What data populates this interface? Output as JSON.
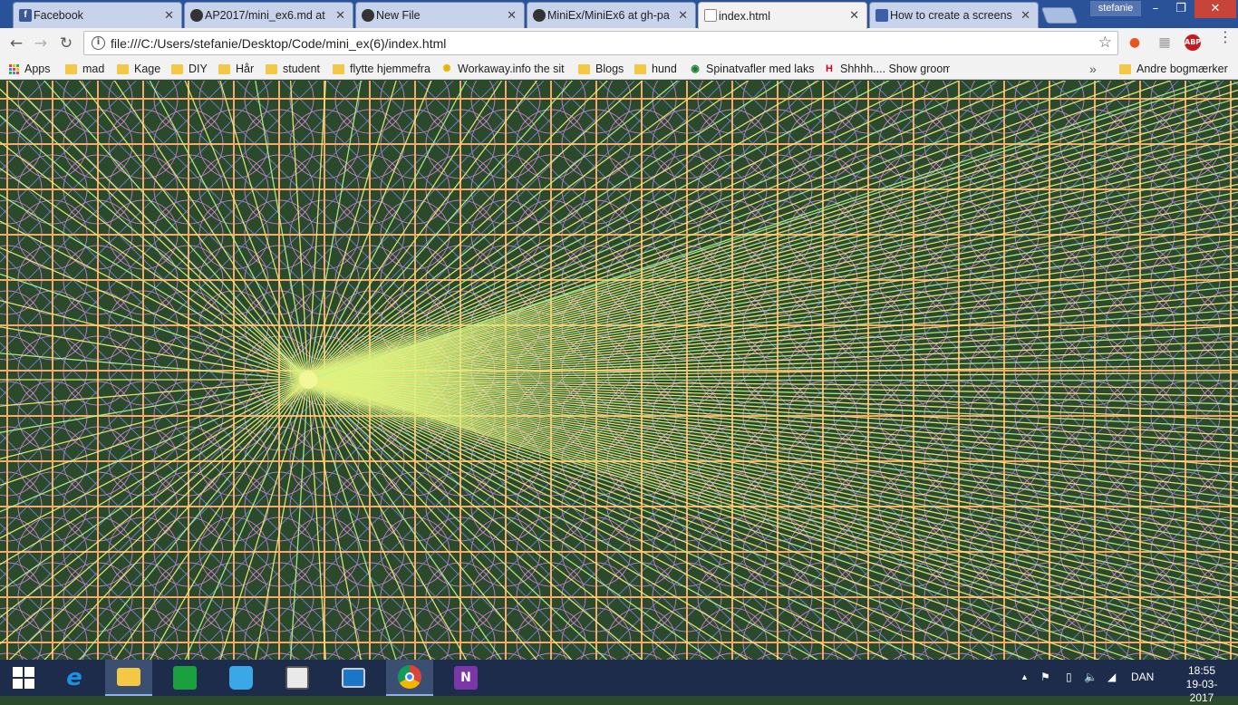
{
  "browser": {
    "tabs": [
      {
        "label": "Facebook",
        "icon": "facebook-icon",
        "active": false
      },
      {
        "label": "AP2017/mini_ex6.md at",
        "icon": "github-icon",
        "active": false
      },
      {
        "label": "New File",
        "icon": "github-icon",
        "active": false
      },
      {
        "label": "MiniEx/MiniEx6 at gh-pa",
        "icon": "github-icon",
        "active": false
      },
      {
        "label": "index.html",
        "icon": "document-icon",
        "active": true
      },
      {
        "label": "How to create a screens",
        "icon": "site-icon",
        "active": false
      }
    ],
    "close_glyph": "✕",
    "profile_name": "stefanie",
    "window_controls": {
      "minimize": "–",
      "maximize": "❐",
      "close": "✕"
    },
    "url": "file:///C:/Users/stefanie/Desktop/Code/mini_ex(6)/index.html",
    "nav": {
      "back": "←",
      "forward": "→",
      "reload": "↻"
    },
    "bookmarks": [
      {
        "label": "Apps",
        "kind": "apps"
      },
      {
        "label": "mad",
        "kind": "folder"
      },
      {
        "label": "Kage",
        "kind": "folder"
      },
      {
        "label": "DIY",
        "kind": "folder"
      },
      {
        "label": "Hår",
        "kind": "folder"
      },
      {
        "label": "student",
        "kind": "folder"
      },
      {
        "label": "flytte hjemmefra",
        "kind": "folder"
      },
      {
        "label": "Workaway.info the sit",
        "kind": "site"
      },
      {
        "label": "Blogs",
        "kind": "folder"
      },
      {
        "label": "hund",
        "kind": "folder"
      },
      {
        "label": "Spinatvafler med laks",
        "kind": "site"
      },
      {
        "label": "Shhhh.... Show groom",
        "kind": "site"
      }
    ],
    "bookmarks_overflow": "»",
    "other_bookmarks": "Andre bogmærker",
    "extensions": {
      "abp": "ABP"
    }
  },
  "art": {
    "background": "#2b4a2b",
    "grid_color": "#f5a96a",
    "circle_color": "#d78ad8",
    "diagonal_color": "#7f86e0",
    "ray_color": "#f2f07a",
    "ray_color_alt": "#b6f58d",
    "hub_color": "#f5f79a"
  },
  "taskbar": {
    "apps": [
      {
        "name": "start",
        "icon": "windows-start-icon"
      },
      {
        "name": "internet-explorer",
        "icon": "internet-explorer-icon",
        "glyph": "e",
        "color": "#1f8fe0"
      },
      {
        "name": "file-explorer",
        "icon": "file-explorer-icon",
        "glyph": "",
        "color": "#f3c845"
      },
      {
        "name": "store",
        "icon": "store-icon",
        "glyph": "",
        "color": "#1aa03c"
      },
      {
        "name": "shopping",
        "icon": "shopping-bag-icon",
        "glyph": "",
        "color": "#3aa7e8"
      },
      {
        "name": "reader",
        "icon": "reader-icon",
        "glyph": "",
        "color": "#e9e9e9"
      },
      {
        "name": "lenovo",
        "icon": "lenovo-icon",
        "glyph": "",
        "color": "#1976c8"
      },
      {
        "name": "chrome",
        "icon": "chrome-icon",
        "glyph": "",
        "color": "#db4437"
      },
      {
        "name": "onenote",
        "icon": "onenote-icon",
        "glyph": "N",
        "color": "#7b36a8"
      }
    ],
    "tray": {
      "language": "DAN"
    },
    "clock": {
      "time": "18:55",
      "date": "19-03-2017"
    }
  }
}
